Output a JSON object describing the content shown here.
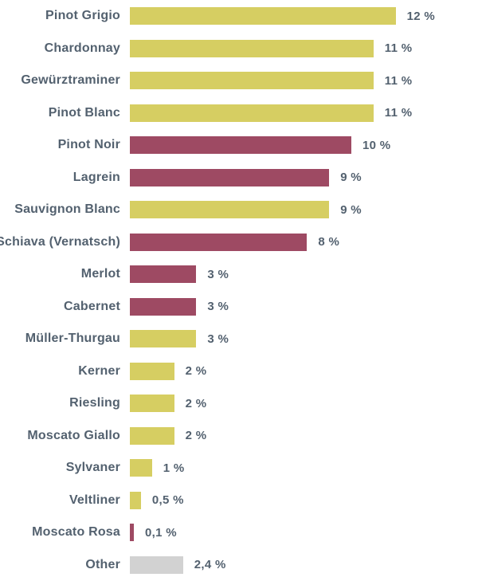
{
  "chart_data": {
    "type": "bar",
    "orientation": "horizontal",
    "title": "",
    "xlabel": "",
    "ylabel": "",
    "xlim": [
      0,
      12.5
    ],
    "grid": false,
    "legend": false,
    "unit": "%",
    "colors": {
      "yellow": "#d6ce62",
      "red": "#9e4a63",
      "gray": "#d2d2d2"
    },
    "label_color": "#53616f",
    "categories": [
      "Pinot Grigio",
      "Chardonnay",
      "Gewürztraminer",
      "Pinot Blanc",
      "Pinot Noir",
      "Lagrein",
      "Sauvignon Blanc",
      "Schiava (Vernatsch)",
      "Merlot",
      "Cabernet",
      "Müller-Thurgau",
      "Kerner",
      "Riesling",
      "Moscato Giallo",
      "Sylvaner",
      "Veltliner",
      "Moscato Rosa",
      "Other"
    ],
    "values": [
      12,
      11,
      11,
      11,
      10,
      9,
      9,
      8,
      3,
      3,
      3,
      2,
      2,
      2,
      1,
      0.5,
      0.1,
      2.4
    ],
    "items": [
      {
        "label": "Pinot Grigio",
        "value": 12,
        "display": "12 %",
        "color": "yellow"
      },
      {
        "label": "Chardonnay",
        "value": 11,
        "display": "11 %",
        "color": "yellow"
      },
      {
        "label": "Gewürztraminer",
        "value": 11,
        "display": "11 %",
        "color": "yellow"
      },
      {
        "label": "Pinot Blanc",
        "value": 11,
        "display": "11 %",
        "color": "yellow"
      },
      {
        "label": "Pinot Noir",
        "value": 10,
        "display": "10 %",
        "color": "red"
      },
      {
        "label": "Lagrein",
        "value": 9,
        "display": "9 %",
        "color": "red"
      },
      {
        "label": "Sauvignon Blanc",
        "value": 9,
        "display": "9 %",
        "color": "yellow"
      },
      {
        "label": "Schiava (Vernatsch)",
        "value": 8,
        "display": "8 %",
        "color": "red"
      },
      {
        "label": "Merlot",
        "value": 3,
        "display": "3 %",
        "color": "red"
      },
      {
        "label": "Cabernet",
        "value": 3,
        "display": "3 %",
        "color": "red"
      },
      {
        "label": "Müller-Thurgau",
        "value": 3,
        "display": "3 %",
        "color": "yellow"
      },
      {
        "label": "Kerner",
        "value": 2,
        "display": "2 %",
        "color": "yellow"
      },
      {
        "label": "Riesling",
        "value": 2,
        "display": "2 %",
        "color": "yellow"
      },
      {
        "label": "Moscato Giallo",
        "value": 2,
        "display": "2 %",
        "color": "yellow"
      },
      {
        "label": "Sylvaner",
        "value": 1,
        "display": "1 %",
        "color": "yellow"
      },
      {
        "label": "Veltliner",
        "value": 0.5,
        "display": "0,5 %",
        "color": "yellow"
      },
      {
        "label": "Moscato Rosa",
        "value": 0.1,
        "display": "0,1 %",
        "color": "red"
      },
      {
        "label": "Other",
        "value": 2.4,
        "display": "2,4 %",
        "color": "gray"
      }
    ]
  }
}
